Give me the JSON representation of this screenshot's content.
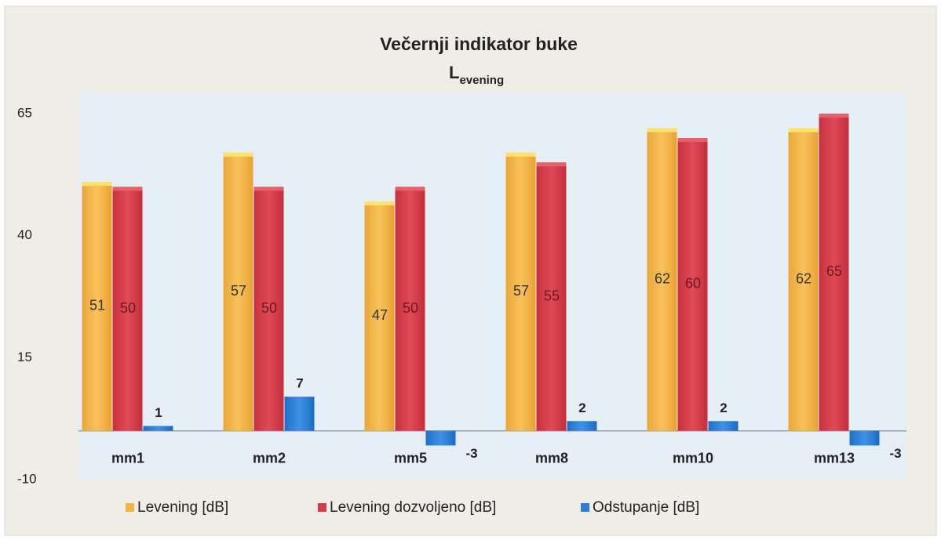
{
  "chart_data": {
    "type": "bar",
    "title": "Večernji indikator buke",
    "subtitle": [
      "L",
      "evening"
    ],
    "categories": [
      "mm1",
      "mm2",
      "mm5",
      "mm8",
      "mm10",
      "mm13"
    ],
    "series": [
      {
        "name": "Levening [dB]",
        "color": "#f2b442",
        "values": [
          51,
          57,
          47,
          57,
          62,
          62
        ]
      },
      {
        "name": "Levening dozvoljeno [dB]",
        "color": "#d63b4a",
        "values": [
          50,
          50,
          50,
          55,
          60,
          65
        ]
      },
      {
        "name": "Odstupanje [dB]",
        "color": "#2b7fd8",
        "values": [
          1,
          7,
          -3,
          2,
          2,
          -3
        ]
      }
    ],
    "ylim": [
      -10,
      65
    ],
    "yticks": [
      -10,
      15,
      40,
      65
    ],
    "grid": false,
    "legend": "bottom"
  }
}
